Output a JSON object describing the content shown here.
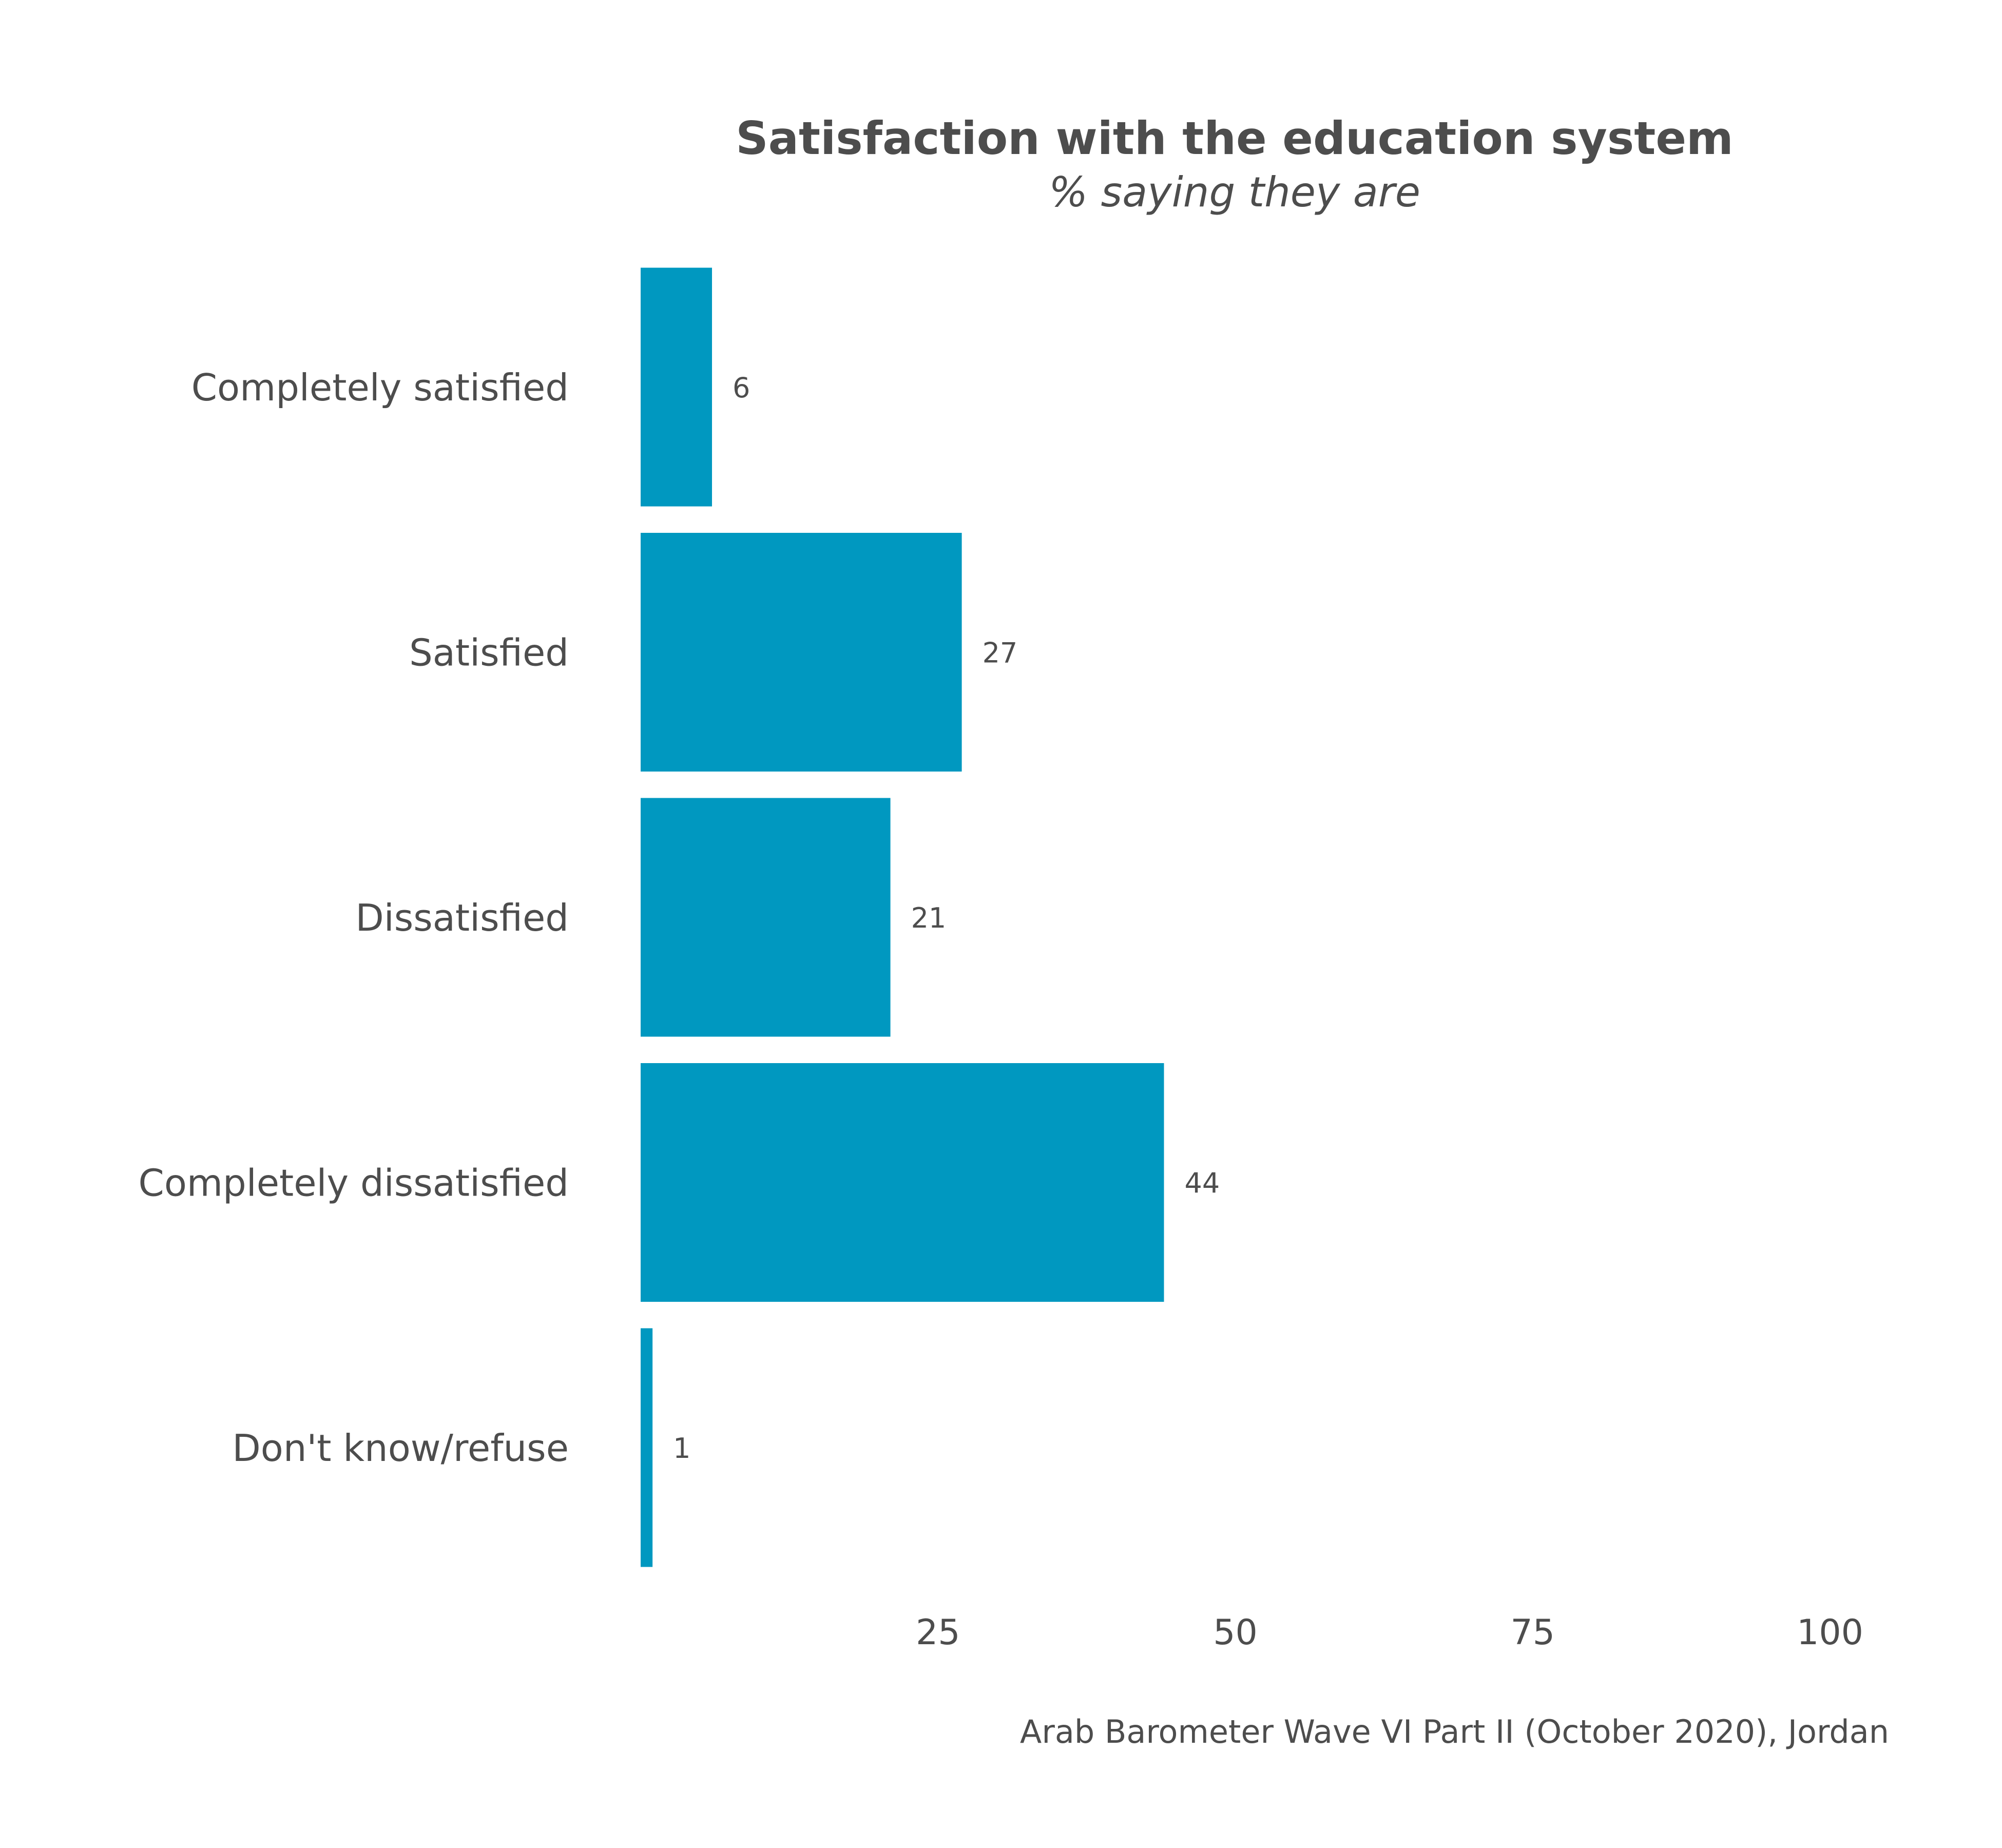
{
  "chart_data": {
    "type": "bar",
    "orientation": "horizontal",
    "title": "Satisfaction with the education system",
    "subtitle": "% saying they are",
    "caption": "Arab Barometer Wave VI Part II (October 2020), Jordan",
    "categories": [
      "Completely satisfied",
      "Satisfied",
      "Dissatisfied",
      "Completely dissatisfied",
      "Don't know/refuse"
    ],
    "values": [
      6,
      27,
      21,
      44,
      1
    ],
    "data_labels": [
      "6",
      "27",
      "21",
      "44",
      "1"
    ],
    "xlim": [
      0,
      100
    ],
    "x_ticks": [
      25,
      50,
      75,
      100
    ],
    "x_tick_labels": [
      "25",
      "50",
      "75",
      "100"
    ],
    "grid": false,
    "legend": "none",
    "bar_color": "#0098c0",
    "text_color": "#4d4d4d"
  }
}
